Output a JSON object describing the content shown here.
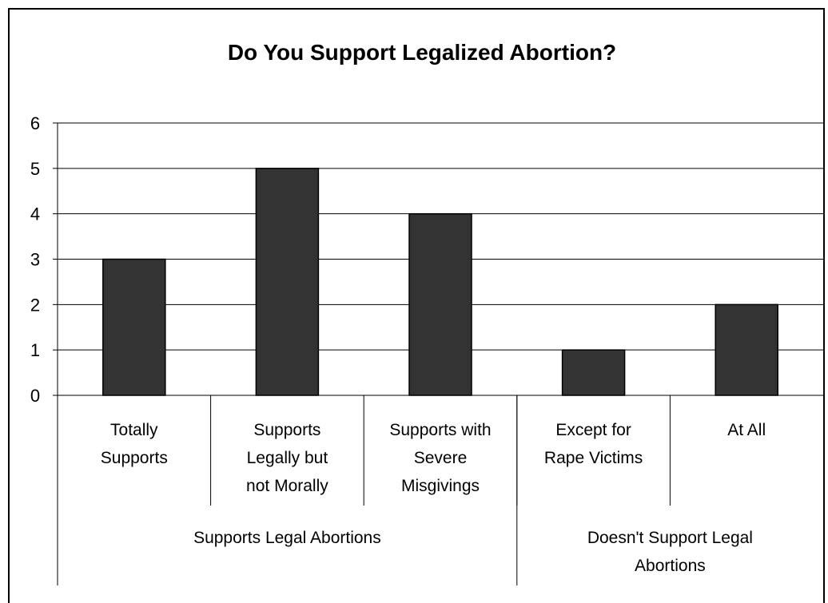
{
  "chart_data": {
    "type": "bar",
    "title": "Do You Support Legalized Abortion?",
    "categories": [
      [
        "Totally",
        "Supports"
      ],
      [
        "Supports",
        "Legally but",
        "not Morally"
      ],
      [
        "Supports with",
        "Severe",
        "Misgivings"
      ],
      [
        "Except for",
        "Rape Victims"
      ],
      [
        "At All"
      ]
    ],
    "groups": [
      {
        "label": [
          "Supports Legal Abortions"
        ],
        "span": [
          0,
          2
        ]
      },
      {
        "label": [
          "Doesn't Support Legal",
          "Abortions"
        ],
        "span": [
          3,
          4
        ]
      }
    ],
    "values": [
      3,
      5,
      4,
      1,
      2
    ],
    "ylim": [
      0,
      6
    ],
    "yticks": [
      "0",
      "1",
      "2",
      "3",
      "4",
      "5",
      "6"
    ],
    "grid": true,
    "bar_color": "#333333",
    "legend": "none"
  }
}
